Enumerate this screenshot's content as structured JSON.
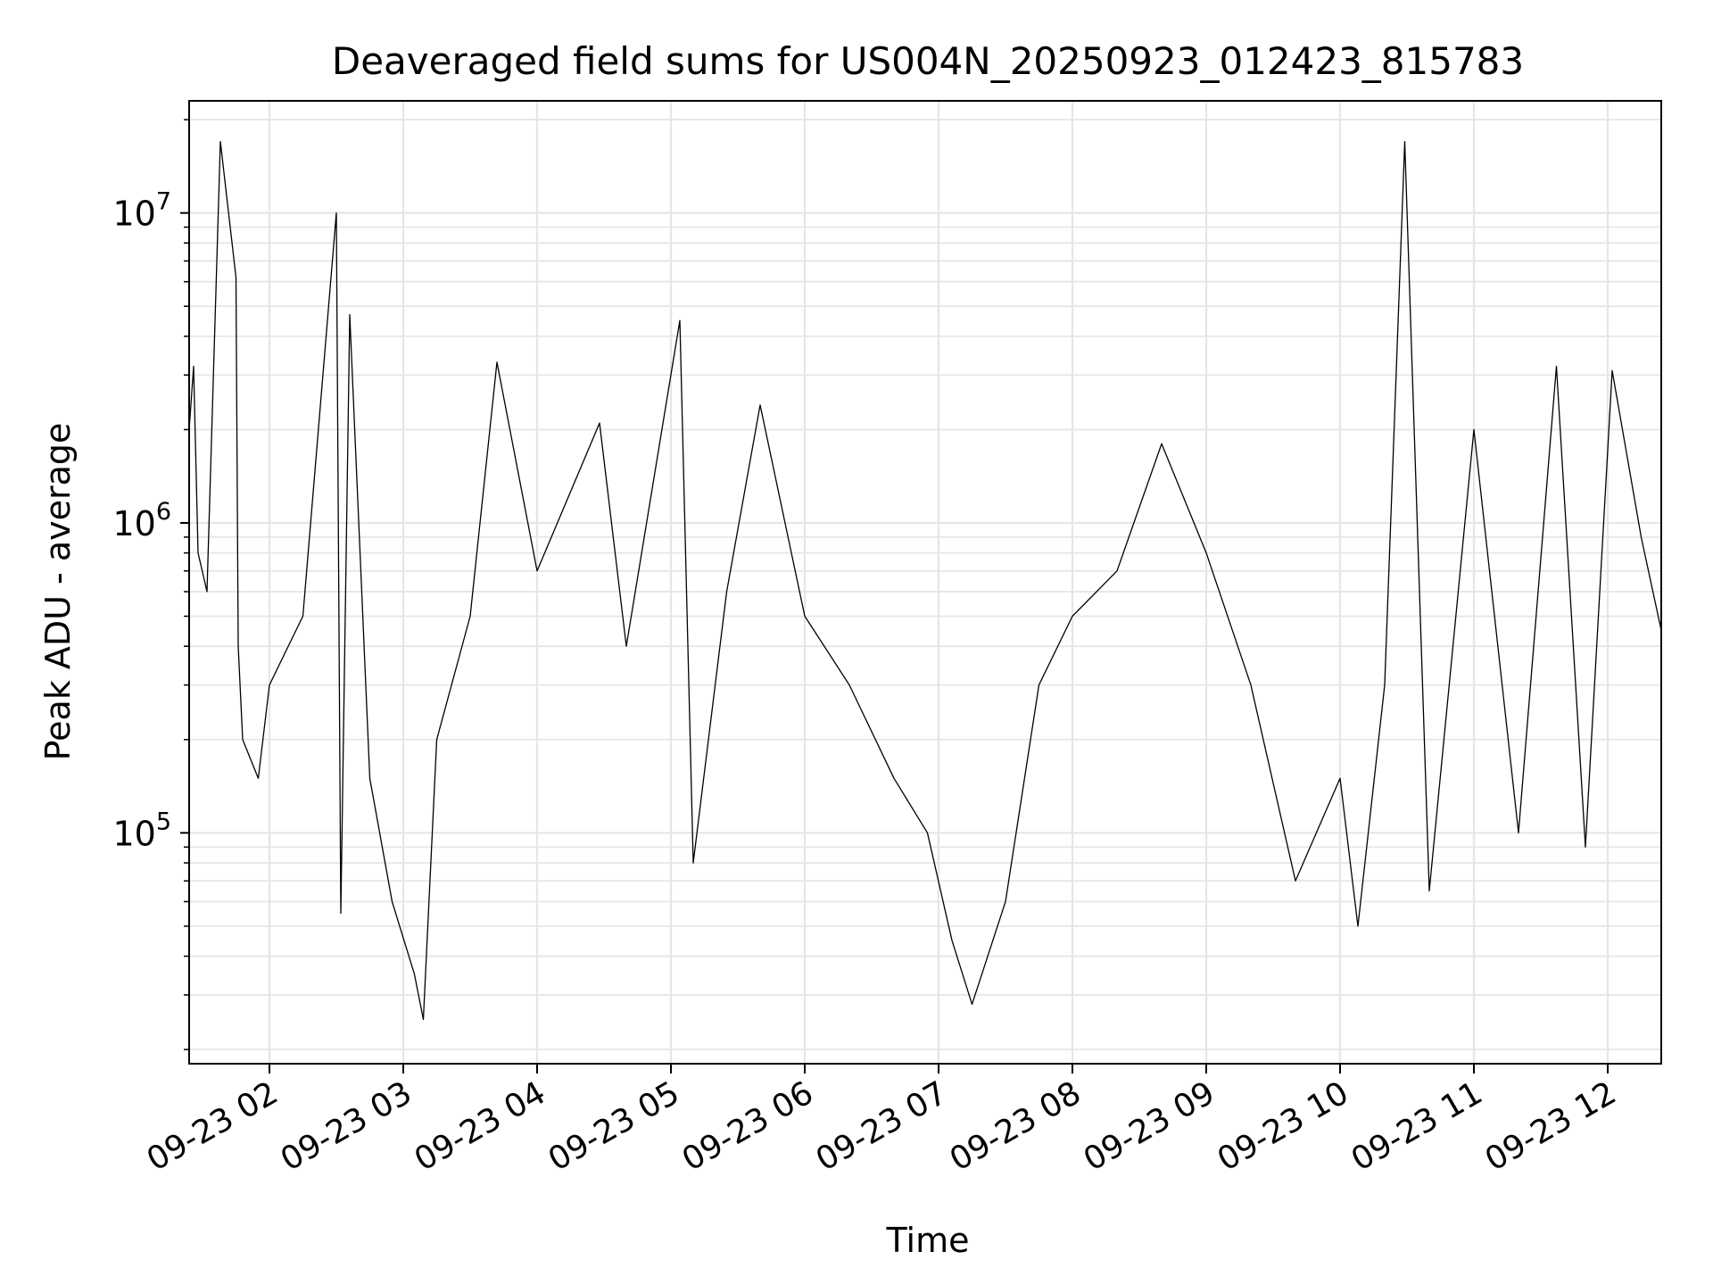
{
  "chart_data": {
    "type": "line",
    "title": "Deaveraged field sums for US004N_20250923_012423_815783",
    "xlabel": "Time",
    "ylabel": "Peak ADU - average",
    "yscale": "log",
    "ylim": [
      18000,
      23000000
    ],
    "xlim": [
      "2025-09-23 01:24",
      "2025-09-23 12:24"
    ],
    "grid": true,
    "line_color": "#000000",
    "grid_color": "#e6e6e6",
    "x_ticks": [
      {
        "value": "2025-09-23 02:00",
        "label": "09-23 02"
      },
      {
        "value": "2025-09-23 03:00",
        "label": "09-23 03"
      },
      {
        "value": "2025-09-23 04:00",
        "label": "09-23 04"
      },
      {
        "value": "2025-09-23 05:00",
        "label": "09-23 05"
      },
      {
        "value": "2025-09-23 06:00",
        "label": "09-23 06"
      },
      {
        "value": "2025-09-23 07:00",
        "label": "09-23 07"
      },
      {
        "value": "2025-09-23 08:00",
        "label": "09-23 08"
      },
      {
        "value": "2025-09-23 09:00",
        "label": "09-23 09"
      },
      {
        "value": "2025-09-23 10:00",
        "label": "09-23 10"
      },
      {
        "value": "2025-09-23 11:00",
        "label": "09-23 11"
      },
      {
        "value": "2025-09-23 12:00",
        "label": "09-23 12"
      }
    ],
    "y_ticks": [
      {
        "value": 100000,
        "base": "10",
        "exp": "5"
      },
      {
        "value": 1000000,
        "base": "10",
        "exp": "6"
      },
      {
        "value": 10000000,
        "base": "10",
        "exp": "7"
      }
    ],
    "series": [
      {
        "x": [
          "2025-09-23 01:24",
          "2025-09-23 01:26",
          "2025-09-23 01:28",
          "2025-09-23 01:32",
          "2025-09-23 01:38",
          "2025-09-23 01:45",
          "2025-09-23 01:46",
          "2025-09-23 01:48",
          "2025-09-23 01:55",
          "2025-09-23 02:00",
          "2025-09-23 02:15",
          "2025-09-23 02:30",
          "2025-09-23 02:32",
          "2025-09-23 02:36",
          "2025-09-23 02:45",
          "2025-09-23 02:55",
          "2025-09-23 03:05",
          "2025-09-23 03:09",
          "2025-09-23 03:15",
          "2025-09-23 03:30",
          "2025-09-23 03:42",
          "2025-09-23 04:00",
          "2025-09-23 04:28",
          "2025-09-23 04:40",
          "2025-09-23 05:04",
          "2025-09-23 05:10",
          "2025-09-23 05:25",
          "2025-09-23 05:40",
          "2025-09-23 06:00",
          "2025-09-23 06:20",
          "2025-09-23 06:40",
          "2025-09-23 06:55",
          "2025-09-23 07:06",
          "2025-09-23 07:15",
          "2025-09-23 07:30",
          "2025-09-23 07:45",
          "2025-09-23 08:00",
          "2025-09-23 08:20",
          "2025-09-23 08:40",
          "2025-09-23 09:00",
          "2025-09-23 09:20",
          "2025-09-23 09:40",
          "2025-09-23 10:00",
          "2025-09-23 10:08",
          "2025-09-23 10:20",
          "2025-09-23 10:29",
          "2025-09-23 10:40",
          "2025-09-23 11:00",
          "2025-09-23 11:20",
          "2025-09-23 11:37",
          "2025-09-23 11:50",
          "2025-09-23 12:02",
          "2025-09-23 12:15",
          "2025-09-23 12:24"
        ],
        "y": [
          2000000,
          3200000,
          800000,
          600000,
          17000000,
          6200000,
          400000,
          200000,
          150000,
          300000,
          500000,
          10000000,
          55000,
          4700000,
          150000,
          60000,
          35000,
          25000,
          200000,
          500000,
          3300000,
          700000,
          2100000,
          400000,
          4500000,
          80000,
          600000,
          2400000,
          500000,
          300000,
          150000,
          100000,
          45000,
          28000,
          60000,
          300000,
          500000,
          700000,
          1800000,
          800000,
          300000,
          70000,
          150000,
          50000,
          300000,
          17000000,
          65000,
          2000000,
          100000,
          3200000,
          90000,
          3100000,
          900000,
          450000
        ]
      }
    ]
  }
}
